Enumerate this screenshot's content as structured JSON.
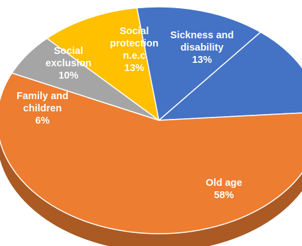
{
  "chart_data": {
    "type": "pie",
    "style": "3d",
    "slices": [
      {
        "label_lines": [
          "Sickness and",
          "disability"
        ],
        "value_text": "13%",
        "value": 13,
        "color": "#4472C4"
      },
      {
        "label_lines": [
          "Old age"
        ],
        "value_text": "58%",
        "value": 58,
        "color": "#ED7D31"
      },
      {
        "label_lines": [
          "Family and",
          "children"
        ],
        "value_text": "6%",
        "value": 6,
        "color": "#A5A5A5"
      },
      {
        "label_lines": [
          "Social",
          "exclusion"
        ],
        "value_text": "10%",
        "value": 10,
        "color": "#FFC000"
      },
      {
        "label_lines": [
          "Social",
          "protection",
          "n.e.c"
        ],
        "value_text": "13%",
        "value": 13,
        "color": "#4472C4"
      }
    ]
  }
}
